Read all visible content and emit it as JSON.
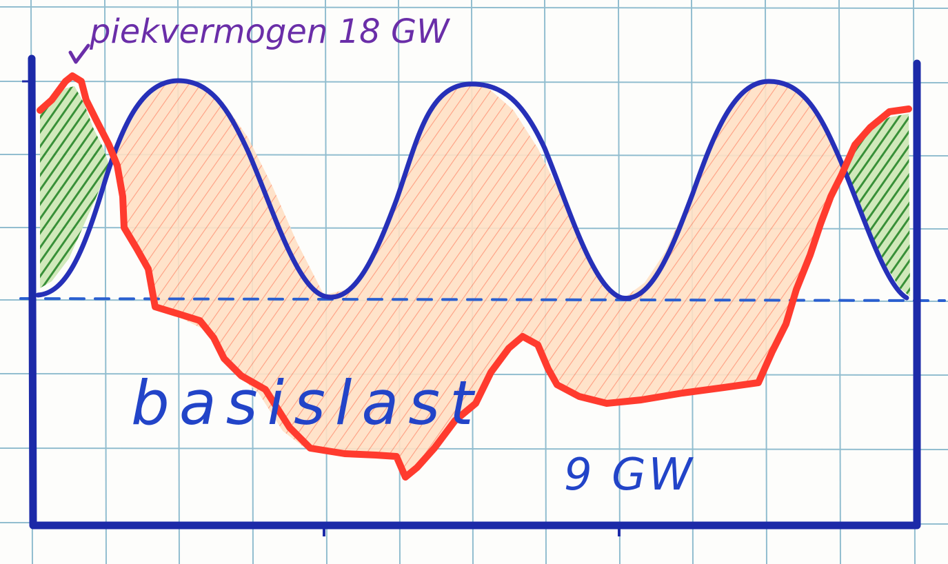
{
  "annotations": {
    "peak_label": "piekvermogen 18 GW",
    "base_label": "basislast",
    "base_value": "9 GW"
  },
  "colors": {
    "paper": "#fdfdfb",
    "grid": "#6aa6bf",
    "axes": "#1c2aa8",
    "supply_curve": "#2630b8",
    "demand_curve": "#ff3b2e",
    "demand_fill": "#ffd2b0",
    "surplus_fill": "#3f9a3a",
    "baseline": "#2a5fd0",
    "label_purple": "#6a2ea8",
    "label_blue": "#2244c8"
  },
  "icons": {
    "peak_marker": "check-mark-icon"
  }
}
